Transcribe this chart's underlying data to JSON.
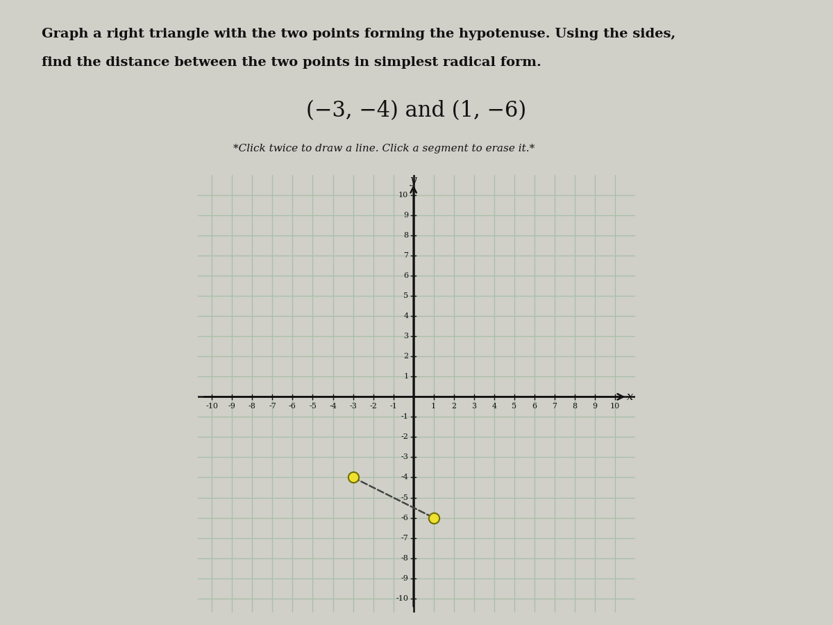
{
  "title_line1": "Graph a right triangle with the two points forming the hypotenuse. Using the sides,",
  "title_line2": "find the distance between the two points in simplest radical form.",
  "subtitle": "(−3, −4) and (1, −6)",
  "instruction": "*Click twice to draw a line. Click a segment to erase it.*",
  "point1": [
    -3,
    -4
  ],
  "point2": [
    1,
    -6
  ],
  "xlim": [
    -10,
    10
  ],
  "ylim": [
    -10,
    10
  ],
  "grid_color": "#a8bfa8",
  "plot_bg_color": "#c8d8c0",
  "fig_bg_color": "#d0cfc8",
  "axis_color": "#111111",
  "point_color": "#f0e030",
  "point_edge_color": "#707000",
  "hypotenuse_color": "#444444",
  "hypotenuse_style": "--",
  "tick_fontsize": 8,
  "axis_label_fontsize": 12,
  "title_fontsize": 14,
  "subtitle_fontsize": 22,
  "instruction_fontsize": 11
}
